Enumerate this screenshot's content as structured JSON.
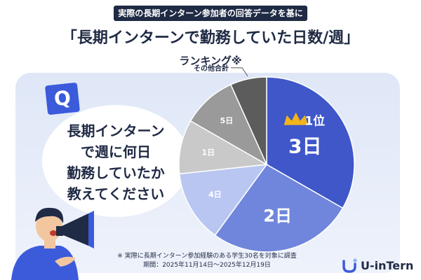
{
  "header": {
    "banner": "実際の長期インターン参加者の回答データを基に",
    "title": "「長期インターンで勤務していた日数/週」",
    "subtitle": "ランキング※"
  },
  "question": {
    "badge": "Q",
    "lines": [
      "長期インターン",
      "で週に何日",
      "勤務していたか",
      "教えてください"
    ]
  },
  "chart_data": {
    "type": "pie",
    "title": "「長期インターンで勤務していた日数/週」",
    "unit": "%",
    "slices": [
      {
        "label": "3日",
        "value": 33.3,
        "color": "#3f57c9",
        "rank_label": "1位"
      },
      {
        "label": "2日",
        "value": 26.7,
        "color": "#6f86dc"
      },
      {
        "label": "4日",
        "value": 13.3,
        "color": "#b9c6f1"
      },
      {
        "label": "1日",
        "value": 10.0,
        "color": "#c9c9c9"
      },
      {
        "label": "5日",
        "value": 10.0,
        "color": "#9a9a9a"
      },
      {
        "label": "その他合計",
        "value": 6.7,
        "color": "#5c5c5c"
      }
    ]
  },
  "footnote": {
    "line1": "※ 実際に長期インターン参加経験のある学生30名を対象に調査",
    "line2": "期間：2025年11月14日〜2025年12月19日"
  },
  "brand": {
    "name": "U-inTern",
    "accent": "#3b5bdb"
  }
}
